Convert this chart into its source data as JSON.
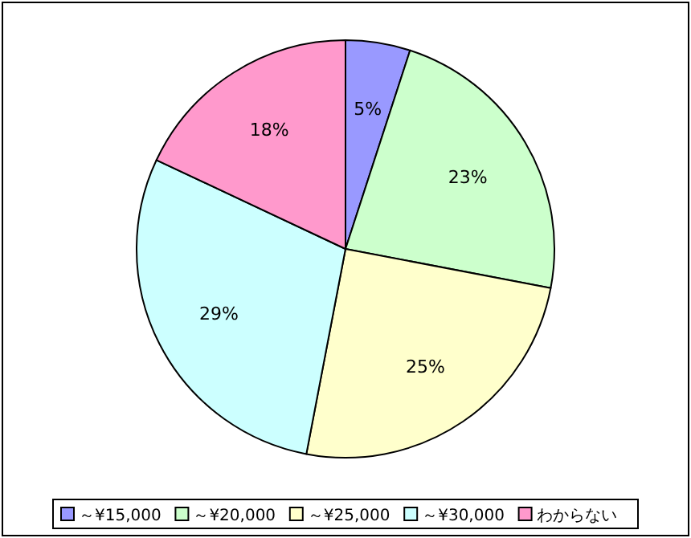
{
  "chart_data": {
    "type": "pie",
    "categories": [
      "～¥15,000",
      "～¥20,000",
      "～¥25,000",
      "～¥30,000",
      "わからない"
    ],
    "values": [
      5,
      23,
      25,
      29,
      18
    ],
    "colors": [
      "#9999ff",
      "#ccffcc",
      "#ffffcc",
      "#ccffff",
      "#ff99cc"
    ],
    "value_labels": [
      "5%",
      "23%",
      "25%",
      "29%",
      "18%"
    ],
    "legend": "bottom"
  }
}
